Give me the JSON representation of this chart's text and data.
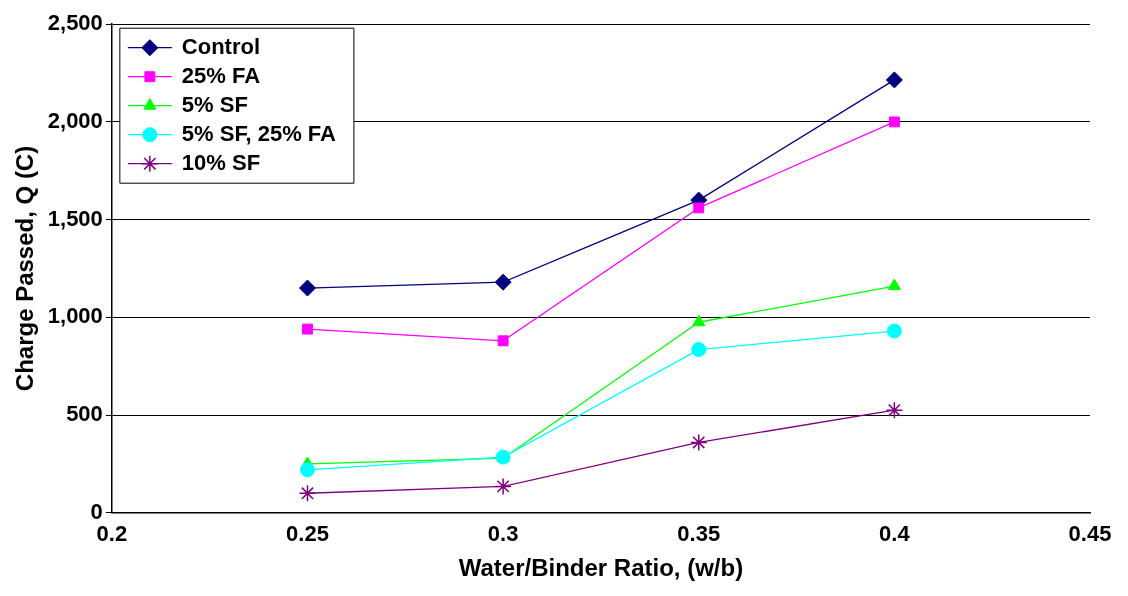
{
  "chart_data": {
    "type": "line",
    "xlabel": "Water/Binder Ratio, (w/b)",
    "ylabel": "Charge Passed, Q (C)",
    "x": [
      0.25,
      0.3,
      0.35,
      0.4
    ],
    "series": [
      {
        "name": "Control",
        "color": "#000080",
        "marker": "diamond",
        "values": [
          1150,
          1180,
          1600,
          2215
        ]
      },
      {
        "name": "25% FA",
        "color": "#ff00ff",
        "marker": "square",
        "values": [
          940,
          880,
          1560,
          2000
        ]
      },
      {
        "name": "5% SF",
        "color": "#00ff00",
        "marker": "triangle",
        "values": [
          250,
          280,
          975,
          1160
        ]
      },
      {
        "name": "5% SF, 25% FA",
        "color": "#00ffff",
        "marker": "circle",
        "values": [
          220,
          285,
          835,
          930
        ]
      },
      {
        "name": "10% SF",
        "color": "#800080",
        "marker": "cross",
        "values": [
          100,
          135,
          360,
          525
        ]
      }
    ],
    "xlim": [
      0.2,
      0.45
    ],
    "xticks": [
      0.2,
      0.25,
      0.3,
      0.35,
      0.4,
      0.45
    ],
    "ylim": [
      0,
      2500
    ],
    "yticks": [
      0,
      500,
      {
        "value": 1000,
        "label": "1,000"
      },
      {
        "value": 1500,
        "label": "1,500"
      },
      {
        "value": 2000,
        "label": "2,000"
      },
      {
        "value": 2500,
        "label": "2,500"
      }
    ],
    "grid": "y",
    "legend": "top left",
    "line_style": "solid"
  }
}
